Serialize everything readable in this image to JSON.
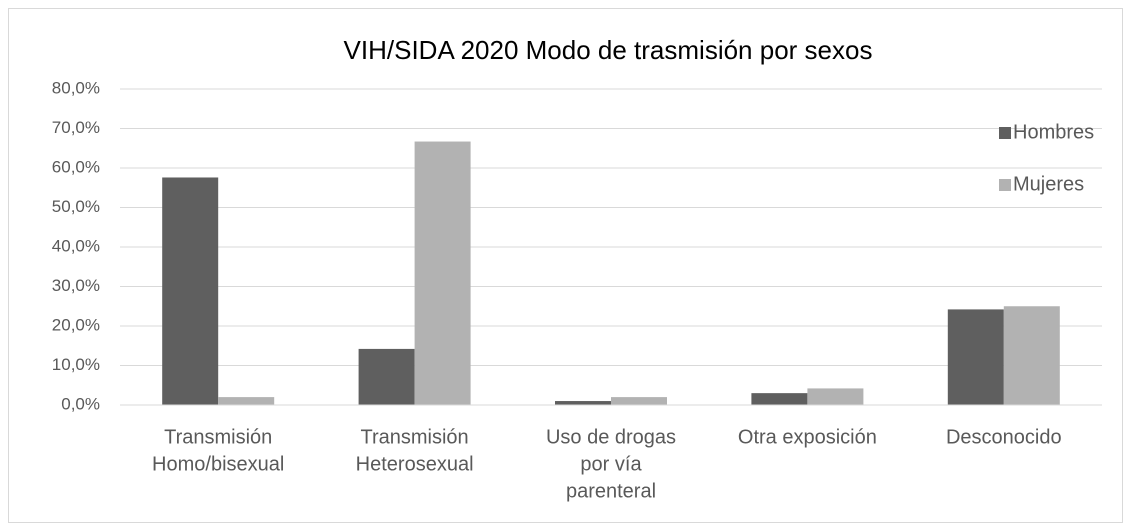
{
  "chart_data": {
    "type": "bar",
    "title": "VIH/SIDA 2020 Modo de trasmisión por sexos",
    "categories": [
      [
        "Transmisión",
        "Homo/bisexual"
      ],
      [
        "Transmisión",
        "Heterosexual"
      ],
      [
        "Uso de drogas",
        "por vía",
        "parenteral"
      ],
      [
        "Otra exposición"
      ],
      [
        "Desconocido"
      ]
    ],
    "series": [
      {
        "name": "Hombres",
        "color": "#5f5f5f",
        "values": [
          57.6,
          14.2,
          1.0,
          3.0,
          24.2
        ]
      },
      {
        "name": "Mujeres",
        "color": "#b2b2b2",
        "values": [
          2.0,
          66.7,
          2.0,
          4.2,
          25.0
        ]
      }
    ],
    "ylim": [
      0,
      80
    ],
    "yticks": [
      {
        "value": 0,
        "label": "0,0%"
      },
      {
        "value": 10,
        "label": "10,0%"
      },
      {
        "value": 20,
        "label": "20,0%"
      },
      {
        "value": 30,
        "label": "30,0%"
      },
      {
        "value": 40,
        "label": "40,0%"
      },
      {
        "value": 50,
        "label": "50,0%"
      },
      {
        "value": 60,
        "label": "60,0%"
      },
      {
        "value": 70,
        "label": "70,0%"
      },
      {
        "value": 80,
        "label": "80,0%"
      }
    ],
    "grid": true,
    "legend": "top-right"
  }
}
